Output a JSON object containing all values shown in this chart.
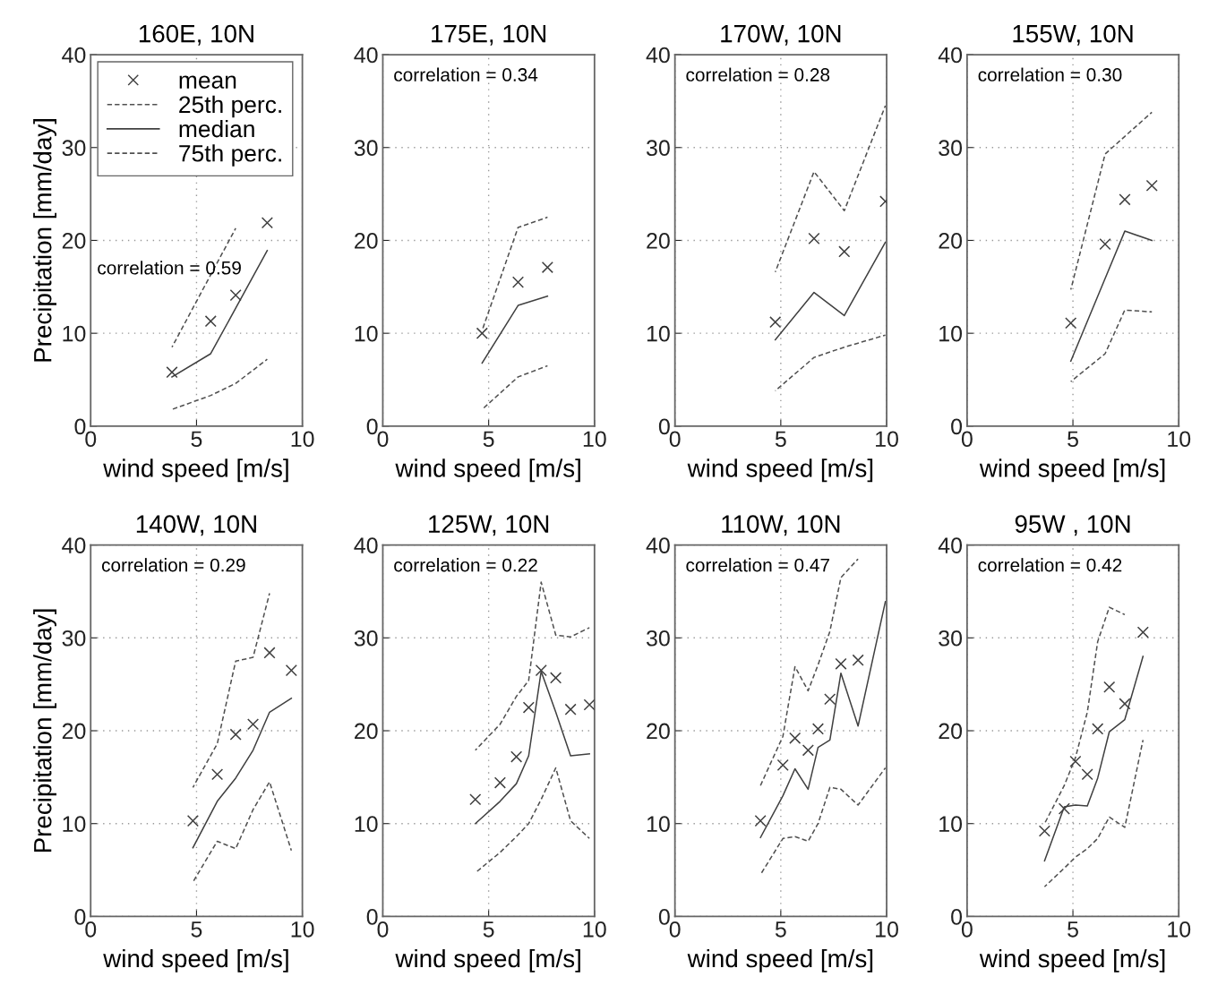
{
  "chart_data": [
    {
      "type": "line",
      "title": "160E, 10N",
      "xlabel": "wind speed [m/s]",
      "ylabel": "Precipitation [mm/day]",
      "xlim": [
        0,
        10
      ],
      "ylim": [
        0,
        40
      ],
      "xticks": [
        0,
        5,
        10
      ],
      "yticks": [
        0,
        10,
        20,
        30,
        40
      ],
      "grid": true,
      "legend": "top left",
      "annotations": [
        "correlation = 0.59"
      ],
      "series": [
        {
          "name": "mean",
          "type": "scatter",
          "marker": "cross",
          "color": "#404040",
          "x": [
            3.84,
            5.67,
            6.85,
            8.34
          ],
          "values": [
            5.8,
            11.3,
            14.1,
            21.9
          ]
        },
        {
          "name": "25th perc.",
          "line_style": "dashed",
          "color": "#505050",
          "x": [
            3.84,
            5.67,
            6.85,
            8.34
          ],
          "values": [
            1.8,
            3.3,
            4.6,
            7.2
          ]
        },
        {
          "name": "median",
          "line_style": "solid",
          "color": "#404040",
          "x": [
            3.84,
            5.67,
            6.85,
            8.34
          ],
          "values": [
            5.3,
            7.8,
            12.7,
            18.9
          ]
        },
        {
          "name": "75th perc.",
          "line_style": "dashed",
          "color": "#505050",
          "x": [
            3.84,
            5.67,
            6.85
          ],
          "values": [
            8.5,
            16.3,
            21.3
          ]
        }
      ]
    },
    {
      "type": "line",
      "title": "175E, 10N",
      "xlabel": "wind speed [m/s]",
      "xlim": [
        0,
        10
      ],
      "ylim": [
        0,
        40
      ],
      "xticks": [
        0,
        5,
        10
      ],
      "yticks": [
        0,
        10,
        20,
        30,
        40
      ],
      "grid": true,
      "annotations": [
        "correlation = 0.34"
      ],
      "series": [
        {
          "type": "scatter",
          "marker": "cross",
          "color": "#404040",
          "x": [
            4.69,
            6.39,
            7.78
          ],
          "values": [
            10.0,
            15.5,
            17.1
          ]
        },
        {
          "type": "line",
          "line_style": "dashed",
          "color": "#505050",
          "x": [
            4.69,
            6.39,
            7.78
          ],
          "values": [
            1.8,
            5.3,
            6.5
          ]
        },
        {
          "type": "line",
          "line_style": "solid",
          "color": "#404040",
          "x": [
            4.69,
            6.39,
            7.78
          ],
          "values": [
            6.8,
            13.0,
            14.0
          ]
        },
        {
          "type": "line",
          "line_style": "dashed",
          "color": "#505050",
          "x": [
            4.69,
            6.39,
            7.78
          ],
          "values": [
            10.3,
            21.4,
            22.5
          ]
        }
      ]
    },
    {
      "type": "line",
      "title": "170W, 10N",
      "xlabel": "wind speed [m/s]",
      "xlim": [
        0,
        10
      ],
      "ylim": [
        0,
        40
      ],
      "xticks": [
        0,
        5,
        10
      ],
      "yticks": [
        0,
        10,
        20,
        30,
        40
      ],
      "grid": true,
      "annotations": [
        "correlation = 0.28"
      ],
      "series": [
        {
          "type": "scatter",
          "marker": "cross",
          "color": "#404040",
          "x": [
            4.74,
            6.57,
            8.0,
            9.94
          ],
          "values": [
            11.2,
            20.2,
            18.8,
            24.2
          ]
        },
        {
          "type": "line",
          "line_style": "dashed",
          "color": "#505050",
          "x": [
            4.74,
            6.57,
            8.0,
            9.94
          ],
          "values": [
            3.8,
            7.4,
            8.5,
            9.8
          ]
        },
        {
          "type": "line",
          "line_style": "solid",
          "color": "#404040",
          "x": [
            4.74,
            6.57,
            8.0,
            9.94
          ],
          "values": [
            9.3,
            14.4,
            11.9,
            19.8
          ]
        },
        {
          "type": "line",
          "line_style": "dashed",
          "color": "#505050",
          "x": [
            4.74,
            6.57,
            8.0,
            9.94
          ],
          "values": [
            16.6,
            27.4,
            23.2,
            34.5
          ]
        }
      ]
    },
    {
      "type": "line",
      "title": "155W, 10N",
      "xlabel": "wind speed [m/s]",
      "xlim": [
        0,
        10
      ],
      "ylim": [
        0,
        40
      ],
      "xticks": [
        0,
        5,
        10
      ],
      "yticks": [
        0,
        10,
        20,
        30,
        40
      ],
      "grid": true,
      "annotations": [
        "correlation = 0.30"
      ],
      "series": [
        {
          "type": "scatter",
          "marker": "cross",
          "color": "#404040",
          "x": [
            4.9,
            6.52,
            7.45,
            8.73
          ],
          "values": [
            11.1,
            19.6,
            24.4,
            25.9
          ]
        },
        {
          "type": "line",
          "line_style": "dashed",
          "color": "#505050",
          "x": [
            4.9,
            6.52,
            7.45,
            8.73
          ],
          "values": [
            4.8,
            7.8,
            12.5,
            12.3
          ]
        },
        {
          "type": "line",
          "line_style": "solid",
          "color": "#404040",
          "x": [
            4.9,
            6.52,
            7.45,
            8.73
          ],
          "values": [
            7.0,
            15.9,
            21.0,
            20.0
          ]
        },
        {
          "type": "line",
          "line_style": "dashed",
          "color": "#505050",
          "x": [
            4.9,
            6.52,
            7.45,
            8.73
          ],
          "values": [
            14.7,
            29.3,
            31.2,
            33.8
          ]
        }
      ]
    },
    {
      "type": "line",
      "title": "140W, 10N",
      "xlabel": "wind speed [m/s]",
      "ylabel": "Precipitation [mm/day]",
      "xlim": [
        0,
        10
      ],
      "ylim": [
        0,
        40
      ],
      "xticks": [
        0,
        5,
        10
      ],
      "yticks": [
        0,
        10,
        20,
        30,
        40
      ],
      "grid": true,
      "annotations": [
        "correlation = 0.29"
      ],
      "series": [
        {
          "type": "scatter",
          "marker": "cross",
          "color": "#404040",
          "x": [
            4.83,
            5.98,
            6.85,
            7.67,
            8.45,
            9.48
          ],
          "values": [
            10.3,
            15.3,
            19.6,
            20.7,
            28.4,
            26.5
          ]
        },
        {
          "type": "line",
          "line_style": "dashed",
          "color": "#505050",
          "x": [
            4.83,
            5.98,
            6.85,
            7.67,
            8.45,
            9.48
          ],
          "values": [
            3.7,
            8.1,
            7.3,
            11.5,
            14.5,
            7.1
          ]
        },
        {
          "type": "line",
          "line_style": "solid",
          "color": "#404040",
          "x": [
            4.83,
            5.98,
            6.85,
            7.67,
            8.45,
            9.48
          ],
          "values": [
            7.4,
            12.4,
            14.9,
            17.9,
            22.0,
            23.5
          ]
        },
        {
          "type": "line",
          "line_style": "dashed",
          "color": "#505050",
          "x": [
            4.83,
            5.98,
            6.85,
            7.67,
            8.45
          ],
          "values": [
            13.9,
            18.6,
            27.5,
            27.9,
            34.8
          ]
        }
      ]
    },
    {
      "type": "line",
      "title": "125W, 10N",
      "xlabel": "wind speed [m/s]",
      "xlim": [
        0,
        10
      ],
      "ylim": [
        0,
        40
      ],
      "xticks": [
        0,
        5,
        10
      ],
      "yticks": [
        0,
        10,
        20,
        30,
        40
      ],
      "grid": true,
      "annotations": [
        "correlation = 0.22"
      ],
      "series": [
        {
          "type": "scatter",
          "marker": "cross",
          "color": "#404040",
          "x": [
            4.37,
            5.54,
            6.31,
            6.89,
            7.48,
            8.17,
            8.87,
            9.76
          ],
          "values": [
            12.6,
            14.4,
            17.2,
            22.5,
            26.5,
            25.7,
            22.3,
            22.8
          ]
        },
        {
          "type": "line",
          "line_style": "dashed",
          "color": "#505050",
          "x": [
            4.37,
            5.54,
            6.31,
            6.89,
            7.48,
            8.17,
            8.87,
            9.76
          ],
          "values": [
            4.7,
            6.9,
            8.6,
            10.0,
            12.6,
            16.0,
            10.3,
            8.4
          ]
        },
        {
          "type": "line",
          "line_style": "solid",
          "color": "#404040",
          "x": [
            4.37,
            5.54,
            6.31,
            6.89,
            7.48,
            8.17,
            8.87,
            9.76
          ],
          "values": [
            10.0,
            12.4,
            14.3,
            17.3,
            26.4,
            22.0,
            17.3,
            17.5
          ]
        },
        {
          "type": "line",
          "line_style": "dashed",
          "color": "#505050",
          "x": [
            4.37,
            5.54,
            6.31,
            6.89,
            7.48,
            8.17,
            8.87,
            9.76
          ],
          "values": [
            17.9,
            20.7,
            23.7,
            25.4,
            36.0,
            30.3,
            30.1,
            31.1
          ]
        }
      ]
    },
    {
      "type": "line",
      "title": "110W, 10N",
      "xlabel": "wind speed [m/s]",
      "xlim": [
        0,
        10
      ],
      "ylim": [
        0,
        40
      ],
      "xticks": [
        0,
        5,
        10
      ],
      "yticks": [
        0,
        10,
        20,
        30,
        40
      ],
      "grid": true,
      "annotations": [
        "correlation = 0.47"
      ],
      "series": [
        {
          "type": "scatter",
          "marker": "cross",
          "color": "#404040",
          "x": [
            4.04,
            5.1,
            5.67,
            6.29,
            6.76,
            7.32,
            7.84,
            8.65
          ],
          "values": [
            10.3,
            16.3,
            19.2,
            17.9,
            20.2,
            23.4,
            27.2,
            27.6
          ]
        },
        {
          "type": "line",
          "line_style": "dashed",
          "color": "#505050",
          "x": [
            4.04,
            5.1,
            5.67,
            6.29,
            6.76,
            7.32,
            7.84,
            8.65,
            9.94
          ],
          "values": [
            4.5,
            8.4,
            8.6,
            8.1,
            10.0,
            13.9,
            13.7,
            12.0,
            16.0
          ]
        },
        {
          "type": "line",
          "line_style": "solid",
          "color": "#404040",
          "x": [
            4.04,
            5.1,
            5.67,
            6.29,
            6.76,
            7.32,
            7.84,
            8.65,
            9.94
          ],
          "values": [
            8.5,
            13.0,
            15.9,
            13.7,
            18.2,
            19.0,
            26.2,
            20.5,
            33.9
          ]
        },
        {
          "type": "line",
          "line_style": "dashed",
          "color": "#505050",
          "x": [
            4.04,
            5.1,
            5.67,
            6.29,
            6.76,
            7.32,
            7.84,
            8.65
          ],
          "values": [
            14.1,
            19.4,
            26.9,
            24.3,
            27.1,
            30.7,
            36.5,
            38.5
          ]
        }
      ]
    },
    {
      "type": "line",
      "title": "95W , 10N",
      "xlabel": "wind speed [m/s]",
      "xlim": [
        0,
        10
      ],
      "ylim": [
        0,
        40
      ],
      "xticks": [
        0,
        5,
        10
      ],
      "yticks": [
        0,
        10,
        20,
        30,
        40
      ],
      "grid": true,
      "annotations": [
        "correlation = 0.42"
      ],
      "series": [
        {
          "type": "scatter",
          "marker": "cross",
          "color": "#404040",
          "x": [
            3.66,
            4.59,
            5.12,
            5.68,
            6.17,
            6.72,
            7.45,
            8.31
          ],
          "values": [
            9.2,
            11.6,
            16.7,
            15.3,
            20.2,
            24.7,
            22.9,
            30.6
          ]
        },
        {
          "type": "line",
          "line_style": "dashed",
          "color": "#505050",
          "x": [
            3.66,
            4.59,
            5.12,
            5.68,
            6.17,
            6.72,
            7.45,
            8.31
          ],
          "values": [
            3.2,
            5.2,
            6.4,
            7.3,
            8.4,
            10.7,
            9.6,
            19.0
          ]
        },
        {
          "type": "line",
          "line_style": "solid",
          "color": "#404040",
          "x": [
            3.66,
            4.59,
            5.12,
            5.68,
            6.17,
            6.72,
            7.45,
            8.31
          ],
          "values": [
            6.0,
            11.8,
            12.0,
            11.9,
            14.9,
            19.9,
            21.2,
            28.0
          ]
        },
        {
          "type": "line",
          "line_style": "dashed",
          "color": "#505050",
          "x": [
            3.66,
            4.59,
            5.12,
            5.68,
            6.17,
            6.72,
            7.45
          ],
          "values": [
            10.0,
            14.1,
            17.1,
            22.0,
            29.6,
            33.3,
            32.5
          ]
        }
      ]
    }
  ]
}
